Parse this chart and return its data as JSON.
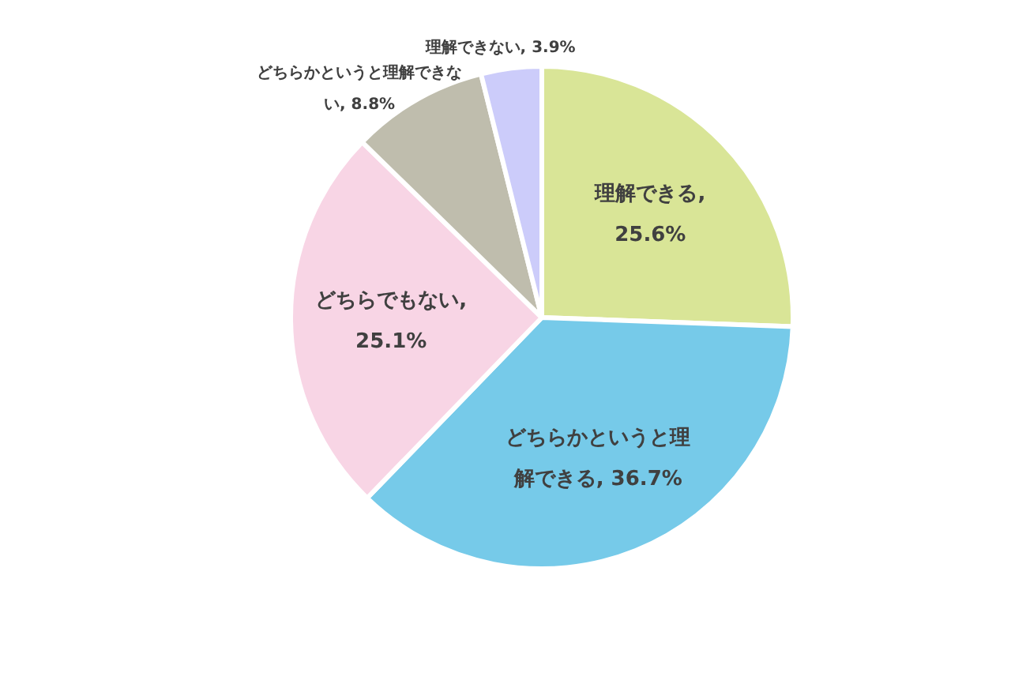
{
  "chart_data": {
    "type": "pie",
    "categories": [
      "理解できる",
      "どちらかというと理解できる",
      "どちらでもない",
      "どちらかというと理解できない",
      "理解できない"
    ],
    "values": [
      25.6,
      36.7,
      25.1,
      8.8,
      3.9
    ],
    "colors": [
      "#d9e597",
      "#76cae9",
      "#f8d5e5",
      "#bfbdad",
      "#ccccfa"
    ],
    "value_labels": [
      ", 25.6%",
      ", 36.7%",
      ", 25.1%",
      ", 8.8%",
      ", 3.9%"
    ]
  }
}
